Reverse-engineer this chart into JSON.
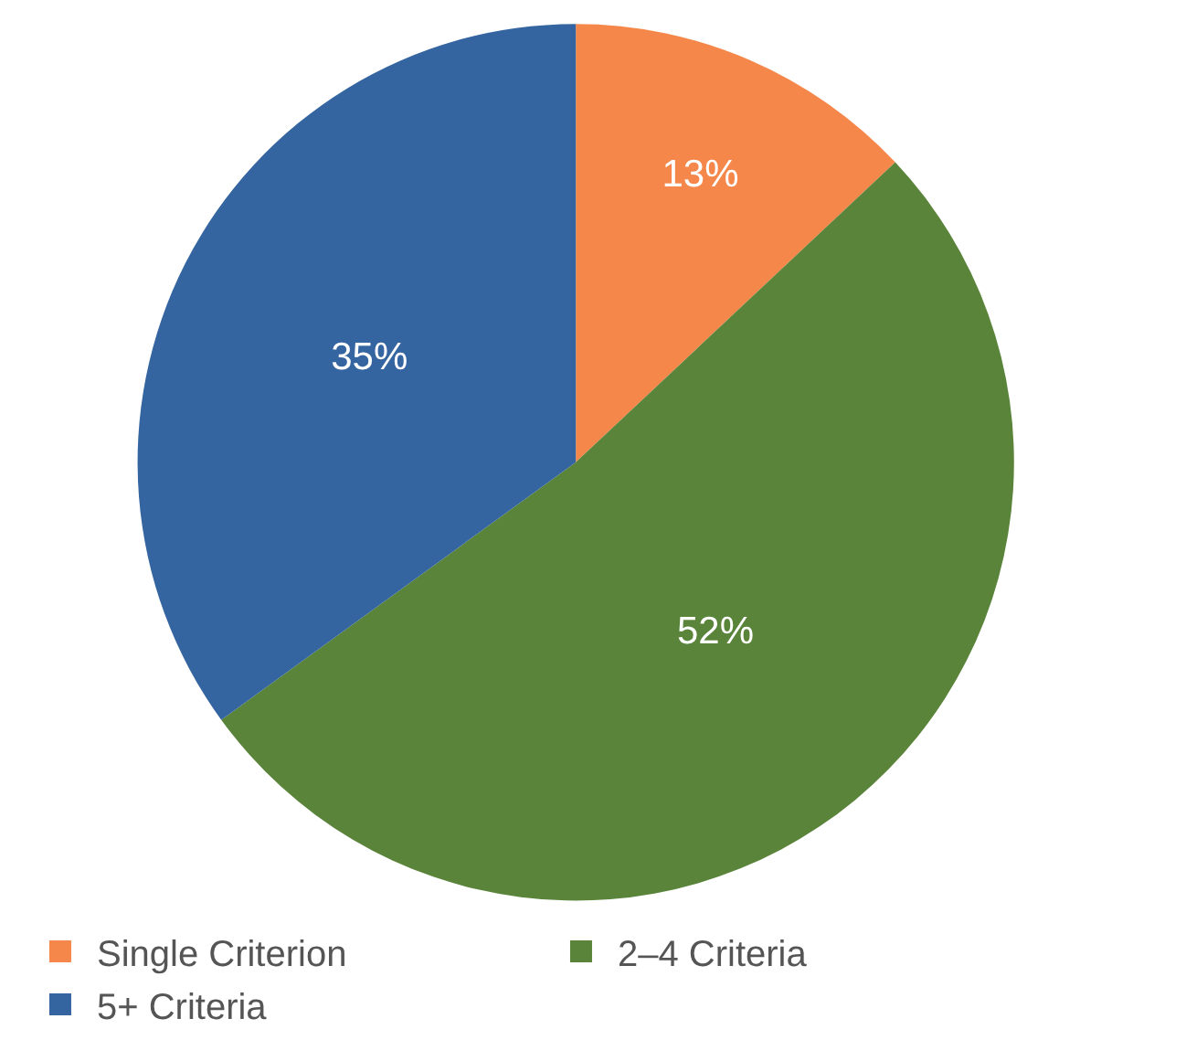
{
  "chart_data": {
    "type": "pie",
    "categories": [
      "Single Criterion",
      "2–4 Criteria",
      "5+ Criteria"
    ],
    "values": [
      13,
      52,
      35
    ],
    "value_labels": [
      "13%",
      "52%",
      "35%"
    ],
    "colors": [
      "#f5874a",
      "#5a843a",
      "#3465a0"
    ],
    "legend": "bottom"
  }
}
